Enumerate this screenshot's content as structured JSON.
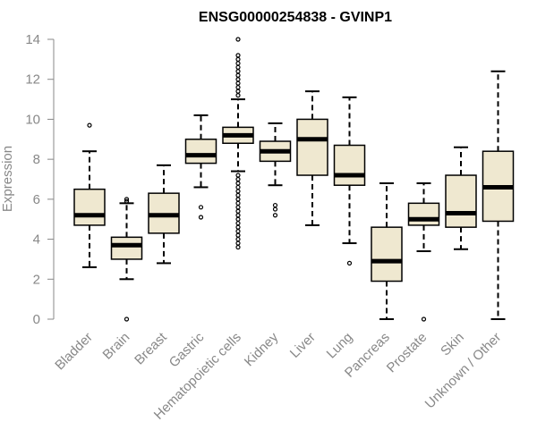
{
  "chart_data": {
    "type": "boxplot",
    "title": "ENSG00000254838 - GVINP1",
    "xlabel": "",
    "ylabel": "Expression",
    "ylim": [
      0,
      14
    ],
    "yticks": [
      0,
      2,
      4,
      6,
      8,
      10,
      12,
      14
    ],
    "grid": false,
    "colors": {
      "box_fill": "#efe8d0",
      "box_stroke": "#000000",
      "axis": "#888888",
      "text": "#888888"
    },
    "categories": [
      "Bladder",
      "Brain",
      "Breast",
      "Gastric",
      "Hematopoietic cells",
      "Kidney",
      "Liver",
      "Lung",
      "Pancreas",
      "Prostate",
      "Skin",
      "Unknown / Other"
    ],
    "boxes": [
      {
        "name": "Bladder",
        "whisker_low": 2.6,
        "q1": 4.7,
        "median": 5.2,
        "q3": 6.5,
        "whisker_high": 8.4,
        "outliers": [
          9.7
        ]
      },
      {
        "name": "Brain",
        "whisker_low": 2.0,
        "q1": 3.0,
        "median": 3.7,
        "q3": 4.1,
        "whisker_high": 5.8,
        "outliers": [
          0.0,
          5.9,
          6.0
        ]
      },
      {
        "name": "Breast",
        "whisker_low": 2.8,
        "q1": 4.3,
        "median": 5.2,
        "q3": 6.3,
        "whisker_high": 7.7,
        "outliers": []
      },
      {
        "name": "Gastric",
        "whisker_low": 6.6,
        "q1": 7.8,
        "median": 8.2,
        "q3": 9.0,
        "whisker_high": 10.2,
        "outliers": [
          5.6,
          5.1
        ]
      },
      {
        "name": "Hematopoietic cells",
        "whisker_low": 7.4,
        "q1": 8.8,
        "median": 9.2,
        "q3": 9.6,
        "whisker_high": 11.0,
        "outliers": [
          14.0,
          13.2,
          13.0,
          12.8,
          12.6,
          12.4,
          12.2,
          12.0,
          11.8,
          11.6,
          11.4,
          11.2,
          7.2,
          7.0,
          6.8,
          6.6,
          6.4,
          6.2,
          6.0,
          5.8,
          5.6,
          5.4,
          5.2,
          5.0,
          4.8,
          4.6,
          4.4,
          4.2,
          4.0,
          3.8,
          3.6
        ]
      },
      {
        "name": "Kidney",
        "whisker_low": 6.7,
        "q1": 7.9,
        "median": 8.4,
        "q3": 8.9,
        "whisker_high": 9.8,
        "outliers": [
          5.7,
          5.5,
          5.2
        ]
      },
      {
        "name": "Liver",
        "whisker_low": 4.7,
        "q1": 7.2,
        "median": 9.0,
        "q3": 10.0,
        "whisker_high": 11.4,
        "outliers": []
      },
      {
        "name": "Lung",
        "whisker_low": 3.8,
        "q1": 6.7,
        "median": 7.2,
        "q3": 8.7,
        "whisker_high": 11.1,
        "outliers": [
          2.8
        ]
      },
      {
        "name": "Pancreas",
        "whisker_low": 0.0,
        "q1": 1.9,
        "median": 2.9,
        "q3": 4.6,
        "whisker_high": 6.8,
        "outliers": []
      },
      {
        "name": "Prostate",
        "whisker_low": 3.4,
        "q1": 4.7,
        "median": 5.0,
        "q3": 5.8,
        "whisker_high": 6.8,
        "outliers": [
          0.0
        ]
      },
      {
        "name": "Skin",
        "whisker_low": 3.5,
        "q1": 4.6,
        "median": 5.3,
        "q3": 7.2,
        "whisker_high": 8.6,
        "outliers": []
      },
      {
        "name": "Unknown / Other",
        "whisker_low": 0.0,
        "q1": 4.9,
        "median": 6.6,
        "q3": 8.4,
        "whisker_high": 12.4,
        "outliers": []
      }
    ]
  }
}
